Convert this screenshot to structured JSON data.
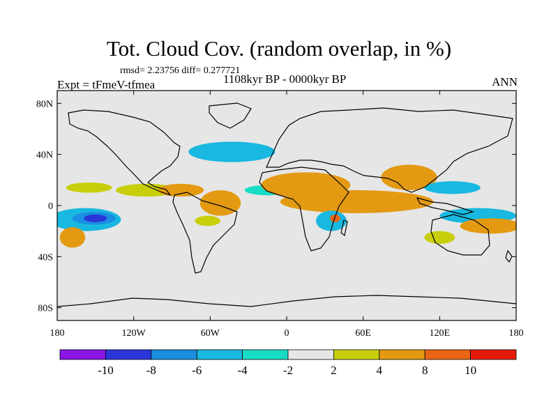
{
  "title": "Tot. Cloud Cov. (random overlap, in %)",
  "stats": "rmsd= 2.23756 diff= 0.277721",
  "experiment": "Expt = tFmeV-tfmea",
  "period": "1108kyr BP - 0000kyr BP",
  "season": "ANN",
  "axes": {
    "lon_ticks": [
      "180",
      "120W",
      "60W",
      "0",
      "60E",
      "120E",
      "180"
    ],
    "lat_ticks": [
      "80N",
      "40N",
      "0",
      "40S",
      "80S"
    ]
  },
  "colorbar": {
    "colors": [
      "#8a16e6",
      "#2a36d8",
      "#1a8ee0",
      "#18b8e0",
      "#19dcc6",
      "#e6e6e6",
      "#c8cf0a",
      "#e39a12",
      "#e96514",
      "#e61a0a"
    ],
    "labels": [
      "-10",
      "-8",
      "-6",
      "-4",
      "-2",
      "2",
      "4",
      "8",
      "10"
    ]
  },
  "field": {
    "units": "%",
    "neutral_color": "#e6e6e6",
    "anomalies": [
      {
        "lon": -158,
        "lat": -11,
        "rx": 28,
        "ry": 9,
        "level": "-4"
      },
      {
        "lon": -151,
        "lat": -10,
        "rx": 17,
        "ry": 5,
        "level": "-8"
      },
      {
        "lon": -150,
        "lat": -10,
        "rx": 9,
        "ry": 3,
        "level": "-10"
      },
      {
        "lon": -168,
        "lat": -25,
        "rx": 10,
        "ry": 8,
        "level": "8"
      },
      {
        "lon": -155,
        "lat": 14,
        "rx": 18,
        "ry": 4,
        "level": "4"
      },
      {
        "lon": -110,
        "lat": 12,
        "rx": 24,
        "ry": 5,
        "level": "4"
      },
      {
        "lon": -83,
        "lat": 12,
        "rx": 18,
        "ry": 5,
        "level": "8"
      },
      {
        "lon": -52,
        "lat": 2,
        "rx": 16,
        "ry": 10,
        "level": "8"
      },
      {
        "lon": -62,
        "lat": -12,
        "rx": 10,
        "ry": 4,
        "level": "4"
      },
      {
        "lon": -43,
        "lat": 42,
        "rx": 34,
        "ry": 8,
        "level": "-4"
      },
      {
        "lon": -15,
        "lat": 12,
        "rx": 18,
        "ry": 4,
        "level": "-2"
      },
      {
        "lon": 15,
        "lat": 16,
        "rx": 35,
        "ry": 10,
        "level": "8"
      },
      {
        "lon": 55,
        "lat": 3,
        "rx": 60,
        "ry": 9,
        "level": "8"
      },
      {
        "lon": 35,
        "lat": -12,
        "rx": 12,
        "ry": 8,
        "level": "-4"
      },
      {
        "lon": 38,
        "lat": -10,
        "rx": 4,
        "ry": 3,
        "level": "10"
      },
      {
        "lon": 96,
        "lat": 22,
        "rx": 22,
        "ry": 10,
        "level": "8"
      },
      {
        "lon": 130,
        "lat": 14,
        "rx": 22,
        "ry": 5,
        "level": "-6"
      },
      {
        "lon": 150,
        "lat": -8,
        "rx": 30,
        "ry": 6,
        "level": "-4"
      },
      {
        "lon": 160,
        "lat": -16,
        "rx": 24,
        "ry": 6,
        "level": "8"
      },
      {
        "lon": 120,
        "lat": -25,
        "rx": 12,
        "ry": 5,
        "level": "4"
      }
    ]
  }
}
